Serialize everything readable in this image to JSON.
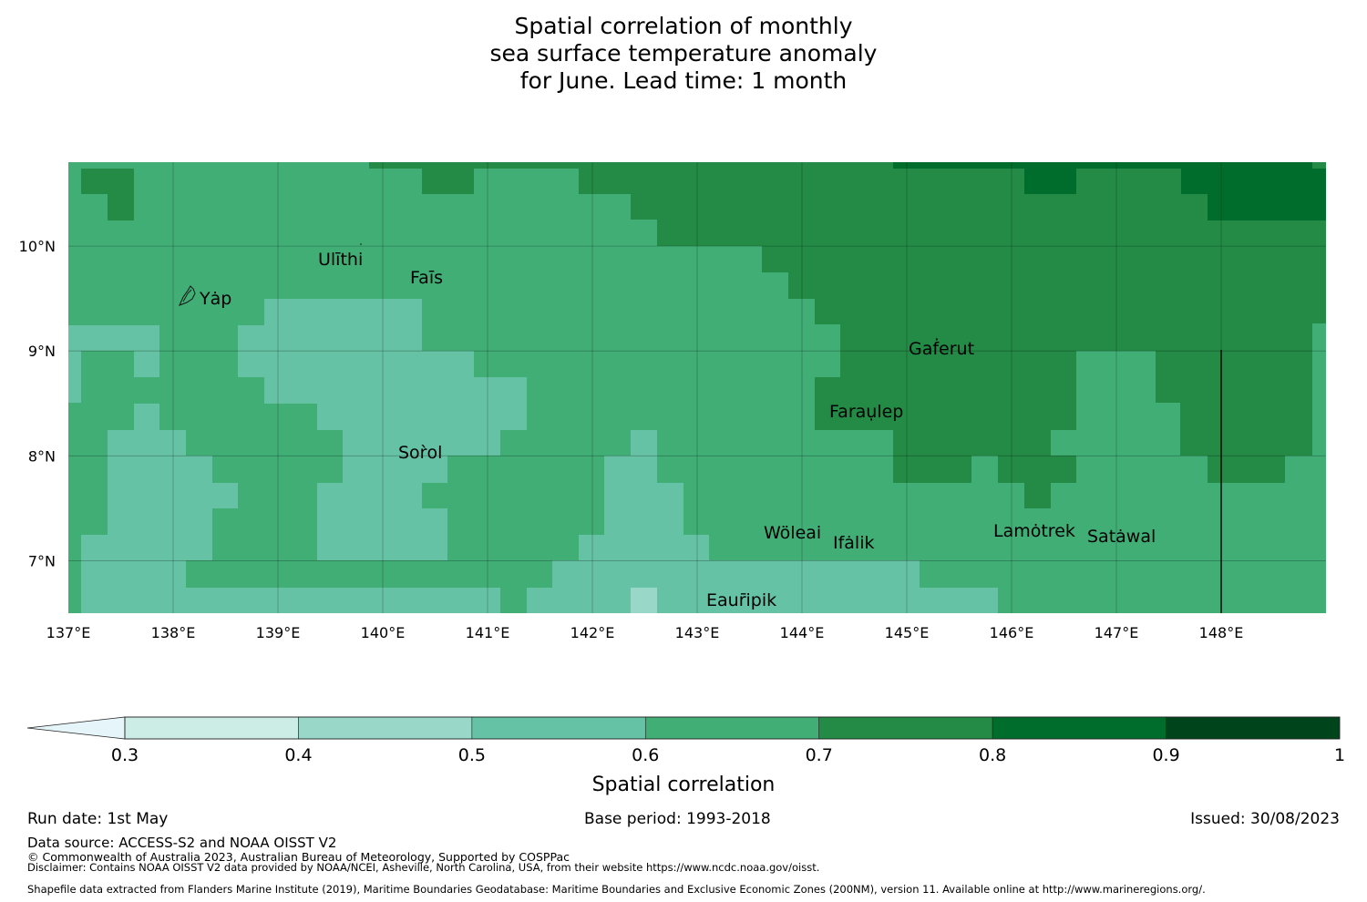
{
  "title_lines": [
    "Spatial correlation of monthly",
    "sea surface temperature anomaly",
    "for June. Lead time: 1 month"
  ],
  "map": {
    "lon_range": [
      137,
      149
    ],
    "lat_range": [
      6.5,
      10.8
    ],
    "lon_ticks": [
      "137°E",
      "138°E",
      "139°E",
      "140°E",
      "141°E",
      "142°E",
      "143°E",
      "144°E",
      "145°E",
      "146°E",
      "147°E",
      "148°E"
    ],
    "lat_ticks": [
      "7°N",
      "8°N",
      "9°N",
      "10°N"
    ],
    "boundary_line_lon": 148,
    "islands": [
      "Ulithi",
      "Fais",
      "Yap",
      "Gaferut",
      "Faraulep",
      "Sorol",
      "Woleai",
      "Ifalik",
      "Lamotrek",
      "Satawal",
      "Eauripik"
    ]
  },
  "island_labels": {
    "ulithi": "Ulīthi",
    "fais": "Faīs",
    "yap": "Yȧp",
    "gaferut": "Gaḟerut",
    "faraulep": "Faraụlep",
    "sorol": "Sor̀ol",
    "woleai": "Wöleai",
    "ifalik": "Ifȧlik",
    "lamotrek": "Lamȯtrek",
    "satawal": "Satȧwal",
    "eauripik": "Eaur̄ipik"
  },
  "colorbar": {
    "ticks": [
      "0.3",
      "0.4",
      "0.5",
      "0.6",
      "0.7",
      "0.8",
      "0.9",
      "1"
    ],
    "label": "Spatial correlation",
    "colors": [
      "#e5f5f9",
      "#ccece6",
      "#99d8c9",
      "#66c2a4",
      "#41ae76",
      "#238b45",
      "#006d2c",
      "#00441b"
    ]
  },
  "footer": {
    "run_date": "Run date: 1st May",
    "base_period": "Base period: 1993-2018",
    "issued": "Issued: 30/08/2023",
    "data_source": "Data source: ACCESS-S2 and NOAA OISST V2",
    "copyright": "© Commonwealth of Australia 2023, Australian Bureau of Meteorology, Supported by COSPPac",
    "disclaimer": "Disclaimer: Contains NOAA OISST V2 data provided by NOAA/NCEI, Asheville, North Carolina, USA, from their website https://www.ncdc.noaa.gov/oisst.",
    "shapefile": "Shapefile data extracted from Flanders Marine Institute (2019), Maritime Boundaries Geodatabase: Maritime Boundaries and Exclusive Economic Zones (200NM), version 11. Available online at http://www.marineregions.org/."
  }
}
